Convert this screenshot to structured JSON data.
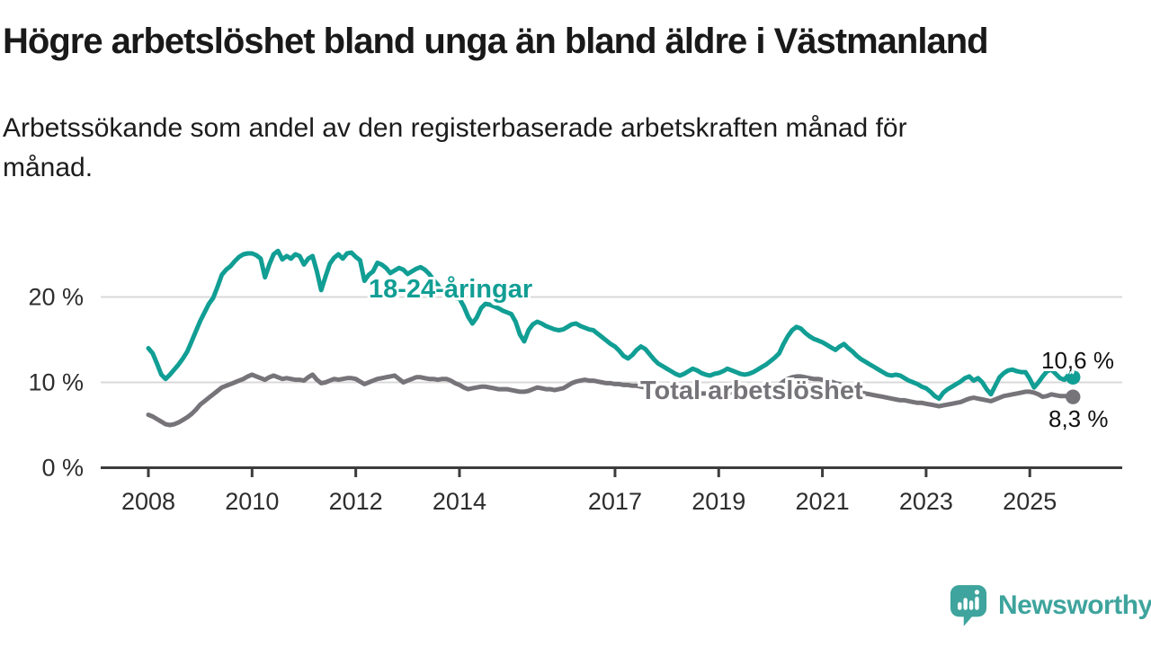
{
  "header": {
    "title": "Högre arbetslöshet bland unga än bland äldre i Västmanland",
    "subtitle": "Arbetssökande som andel av den registerbaserade arbetskraften månad för månad."
  },
  "footer": {
    "brand": "Newsworthy",
    "logo_icon": "speech-bubble-bar-chart-icon"
  },
  "colors": {
    "young_line": "#119e94",
    "total_line": "#767479",
    "grid": "#d9d9d9",
    "axis": "#3c3c3c",
    "tick_text": "#2d2d2d",
    "title_text": "#191919",
    "brand_teal": "#3ea49d"
  },
  "chart_data": {
    "type": "line",
    "title": "Högre arbetslöshet bland unga än bland äldre i Västmanland",
    "subtitle": "Arbetssökande som andel av den registerbaserade arbetskraften månad för månad.",
    "x_unit": "month",
    "x_start": "2008-01",
    "x_end": "2025-11",
    "x_ticks": [
      2008,
      2010,
      2012,
      2014,
      2017,
      2019,
      2021,
      2023,
      2025
    ],
    "y_ticks": [
      {
        "value": 0,
        "label": "0 %"
      },
      {
        "value": 10,
        "label": "10 %"
      },
      {
        "value": 20,
        "label": "20 %"
      }
    ],
    "ylim": [
      0,
      27
    ],
    "grid": "horizontal-only",
    "legend": "inline-labels",
    "series": [
      {
        "name": "18-24-åringar",
        "color": "#119e94",
        "end_label": "10,6 %",
        "end_value": 10.6,
        "values": [
          14.0,
          13.4,
          12.2,
          10.9,
          10.4,
          10.9,
          11.5,
          12.1,
          12.8,
          13.6,
          14.8,
          16.0,
          17.2,
          18.2,
          19.2,
          19.9,
          21.2,
          22.6,
          23.2,
          23.6,
          24.2,
          24.7,
          25.0,
          25.1,
          25.1,
          24.9,
          24.5,
          22.3,
          23.8,
          25.0,
          25.4,
          24.4,
          24.8,
          24.5,
          25.0,
          24.8,
          23.8,
          24.5,
          24.8,
          23.0,
          20.8,
          22.4,
          23.9,
          24.6,
          25.0,
          24.5,
          25.1,
          25.2,
          24.7,
          24.3,
          21.9,
          22.6,
          23.0,
          24.0,
          23.8,
          23.4,
          22.8,
          23.1,
          23.4,
          23.2,
          22.7,
          23.0,
          23.3,
          23.5,
          23.2,
          22.7,
          22.0,
          21.4,
          20.6,
          20.2,
          20.0,
          19.9,
          19.8,
          18.9,
          17.7,
          16.9,
          17.6,
          18.7,
          19.2,
          19.1,
          18.9,
          18.7,
          18.4,
          18.2,
          18.0,
          17.1,
          15.6,
          14.8,
          16.1,
          16.8,
          17.1,
          16.9,
          16.6,
          16.4,
          16.2,
          16.1,
          16.2,
          16.5,
          16.8,
          16.9,
          16.6,
          16.4,
          16.2,
          16.1,
          15.7,
          15.3,
          14.9,
          14.5,
          14.2,
          13.7,
          13.1,
          12.8,
          13.2,
          13.8,
          14.2,
          13.9,
          13.3,
          12.7,
          12.2,
          11.9,
          11.6,
          11.3,
          11.0,
          10.8,
          11.0,
          11.3,
          11.6,
          11.4,
          11.1,
          10.9,
          10.8,
          11.0,
          11.1,
          11.3,
          11.6,
          11.4,
          11.2,
          11.0,
          10.9,
          11.0,
          11.2,
          11.5,
          11.8,
          12.1,
          12.5,
          12.9,
          13.4,
          14.5,
          15.4,
          16.1,
          16.5,
          16.3,
          15.8,
          15.4,
          15.1,
          14.9,
          14.7,
          14.4,
          14.1,
          13.8,
          14.2,
          14.5,
          14.0,
          13.6,
          13.1,
          12.7,
          12.4,
          12.1,
          11.8,
          11.5,
          11.2,
          10.9,
          10.8,
          10.9,
          10.8,
          10.5,
          10.2,
          10.0,
          9.8,
          9.5,
          9.3,
          8.9,
          8.4,
          8.1,
          8.8,
          9.2,
          9.5,
          9.8,
          10.1,
          10.5,
          10.7,
          10.2,
          10.5,
          10.0,
          9.2,
          8.6,
          9.6,
          10.6,
          11.1,
          11.4,
          11.5,
          11.3,
          11.2,
          11.2,
          10.4,
          9.4,
          10.0,
          10.7,
          11.3,
          11.5,
          11.0,
          10.5,
          10.3,
          10.9,
          10.6
        ]
      },
      {
        "name": "Total arbetslöshet",
        "color": "#767479",
        "end_label": "8,3 %",
        "end_value": 8.3,
        "values": [
          6.2,
          6.0,
          5.7,
          5.4,
          5.1,
          5.0,
          5.1,
          5.3,
          5.6,
          5.9,
          6.3,
          6.8,
          7.4,
          7.8,
          8.2,
          8.6,
          9.0,
          9.4,
          9.6,
          9.8,
          10.0,
          10.2,
          10.4,
          10.7,
          10.9,
          10.7,
          10.5,
          10.3,
          10.6,
          10.8,
          10.6,
          10.4,
          10.5,
          10.4,
          10.3,
          10.3,
          10.2,
          10.6,
          10.9,
          10.3,
          9.9,
          10.0,
          10.2,
          10.4,
          10.3,
          10.4,
          10.5,
          10.5,
          10.4,
          10.1,
          9.8,
          10.0,
          10.2,
          10.4,
          10.5,
          10.6,
          10.7,
          10.8,
          10.4,
          10.0,
          10.2,
          10.4,
          10.6,
          10.6,
          10.5,
          10.4,
          10.4,
          10.3,
          10.4,
          10.4,
          10.2,
          9.9,
          9.7,
          9.4,
          9.2,
          9.3,
          9.4,
          9.5,
          9.5,
          9.4,
          9.3,
          9.2,
          9.2,
          9.2,
          9.1,
          9.0,
          8.9,
          8.9,
          9.0,
          9.2,
          9.4,
          9.3,
          9.2,
          9.2,
          9.1,
          9.2,
          9.3,
          9.6,
          9.9,
          10.1,
          10.2,
          10.3,
          10.2,
          10.2,
          10.1,
          10.0,
          9.9,
          9.9,
          9.8,
          9.8,
          9.7,
          9.7,
          9.6,
          9.6,
          9.5,
          9.4,
          9.3,
          9.2,
          9.2,
          9.1,
          9.1,
          9.0,
          9.0,
          8.9,
          8.9,
          8.8,
          8.8,
          8.7,
          8.7,
          8.7,
          8.7,
          8.8,
          8.8,
          8.8,
          8.8,
          8.8,
          8.8,
          8.8,
          8.9,
          8.9,
          9.0,
          9.0,
          9.1,
          9.2,
          9.3,
          9.4,
          9.7,
          10.1,
          10.4,
          10.6,
          10.7,
          10.7,
          10.6,
          10.5,
          10.4,
          10.4,
          10.3,
          10.2,
          10.1,
          9.9,
          9.8,
          9.6,
          9.4,
          9.2,
          9.0,
          8.8,
          8.7,
          8.6,
          8.5,
          8.4,
          8.3,
          8.2,
          8.1,
          8.0,
          7.9,
          7.9,
          7.8,
          7.7,
          7.6,
          7.6,
          7.5,
          7.4,
          7.3,
          7.2,
          7.3,
          7.4,
          7.5,
          7.6,
          7.7,
          7.9,
          8.1,
          8.2,
          8.1,
          8.0,
          7.9,
          7.8,
          8.0,
          8.2,
          8.4,
          8.5,
          8.6,
          8.7,
          8.8,
          8.9,
          8.9,
          8.8,
          8.6,
          8.3,
          8.4,
          8.6,
          8.5,
          8.4,
          8.4,
          8.4,
          8.3
        ]
      }
    ]
  }
}
